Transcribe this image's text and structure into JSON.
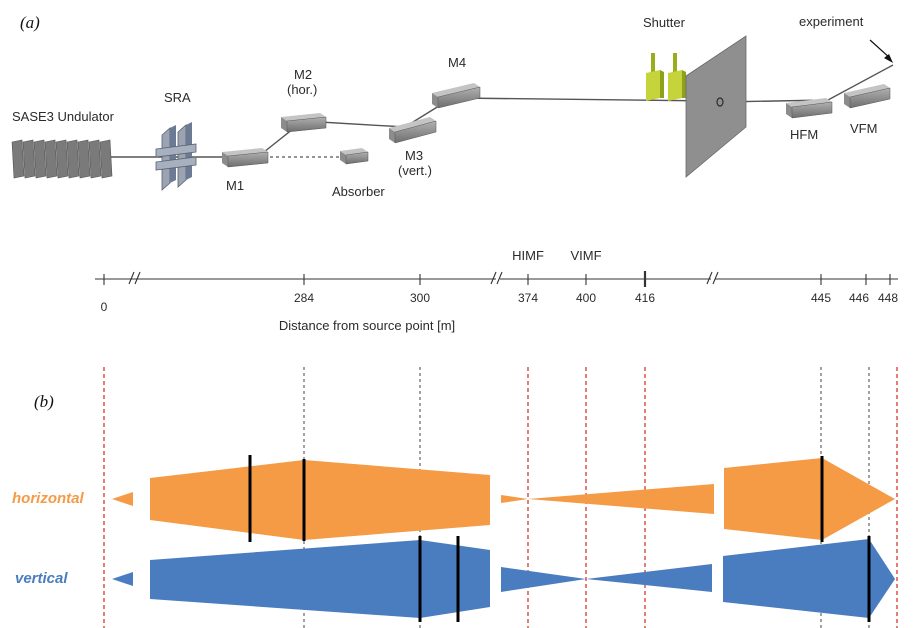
{
  "panel_a_label": "(a)",
  "panel_b_label": "(b)",
  "components": {
    "undulator": "SASE3 Undulator",
    "sra": "SRA",
    "m1": "M1",
    "m2": "M2",
    "m2_sub": "(hor.)",
    "m3": "M3",
    "m3_sub": "(vert.)",
    "m4": "M4",
    "absorber": "Absorber",
    "shutter": "Shutter",
    "hfm": "HFM",
    "vfm": "VFM",
    "experiment": "experiment"
  },
  "axis": {
    "label": "Distance from source point [m]",
    "ticks": [
      "0",
      "284",
      "300",
      "374",
      "400",
      "416",
      "445",
      "446",
      "448"
    ],
    "upper_labels": [
      "HIMF",
      "VIMF"
    ]
  },
  "beam_labels": {
    "horizontal": "horizontal",
    "vertical": "vertical"
  },
  "colors": {
    "horizontal": "#F59A45",
    "vertical": "#4A7CC0",
    "markers": "#d33a2c",
    "mirror": "#8a8a8a",
    "shutter": "#b8c828"
  }
}
